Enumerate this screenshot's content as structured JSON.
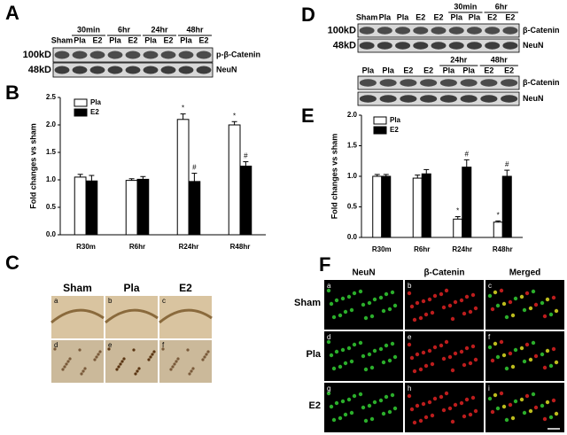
{
  "panel_labels": [
    "A",
    "B",
    "C",
    "D",
    "E",
    "F"
  ],
  "blot_a": {
    "groups": [
      "30min",
      "6hr",
      "24hr",
      "48hr"
    ],
    "lanes": [
      "Sham",
      "Pla",
      "E2",
      "Pla",
      "E2",
      "Pla",
      "E2",
      "Pla",
      "E2"
    ],
    "bands": [
      {
        "size": "100kD",
        "label": "p-β-Catenin"
      },
      {
        "size": "48kD",
        "label": "NeuN"
      }
    ]
  },
  "blot_d": {
    "top": {
      "groups": [
        "30min",
        "6hr"
      ],
      "lanes": [
        "Sham",
        "Pla",
        "Pla",
        "E2",
        "E2",
        "Pla",
        "Pla",
        "E2",
        "E2"
      ],
      "bands": [
        {
          "size": "100kD",
          "label": "β-Catenin"
        },
        {
          "size": "48kD",
          "label": "NeuN"
        }
      ]
    },
    "bottom": {
      "groups": [
        "24hr",
        "48hr"
      ],
      "lanes": [
        "Pla",
        "Pla",
        "E2",
        "E2",
        "Pla",
        "Pla",
        "E2",
        "E2"
      ],
      "bands": [
        {
          "label": "β-Catenin"
        },
        {
          "label": "NeuN"
        }
      ]
    }
  },
  "chart_data": [
    {
      "type": "bar",
      "y_label": "Fold changes vs sham",
      "categories": [
        "R30m",
        "R6hr",
        "R24hr",
        "R48hr"
      ],
      "ylim": [
        0,
        2.5
      ],
      "yticks": [
        {
          "value": 0,
          "label": "0.0"
        },
        0.5,
        {
          "value": 1,
          "label": "1.0"
        },
        1.5,
        {
          "value": 2,
          "label": "2.0"
        },
        2.5
      ],
      "series": [
        {
          "name": "Pla",
          "color": "#ffffff",
          "values": [
            1.05,
            0.99,
            2.1,
            2.0
          ],
          "errors": [
            0.05,
            0.03,
            0.1,
            0.06
          ],
          "markers": [
            null,
            null,
            "*",
            "*"
          ]
        },
        {
          "name": "E2",
          "color": "#000000",
          "values": [
            0.98,
            1.01,
            0.97,
            1.25
          ],
          "errors": [
            0.1,
            0.05,
            0.15,
            0.08
          ],
          "markers": [
            null,
            null,
            "#",
            "#"
          ]
        }
      ]
    },
    {
      "type": "bar",
      "y_label": "Fold changes vs sham",
      "categories": [
        "R30m",
        "R6hr",
        "R24hr",
        "R48hr"
      ],
      "ylim": [
        0,
        2.0
      ],
      "yticks": [
        {
          "value": 0,
          "label": "0.0"
        },
        0.5,
        {
          "value": 1,
          "label": "1.0"
        },
        1.5,
        {
          "value": 2,
          "label": "2.0"
        }
      ],
      "series": [
        {
          "name": "Pla",
          "color": "#ffffff",
          "values": [
            1.0,
            0.97,
            0.3,
            0.25
          ],
          "errors": [
            0.03,
            0.05,
            0.04,
            0.02
          ],
          "markers": [
            null,
            null,
            "*",
            "*"
          ]
        },
        {
          "name": "E2",
          "color": "#000000",
          "values": [
            1.0,
            1.04,
            1.15,
            1.0
          ],
          "errors": [
            0.03,
            0.07,
            0.12,
            0.1
          ],
          "markers": [
            null,
            null,
            "#",
            "#"
          ]
        }
      ]
    }
  ],
  "histology": {
    "columns": [
      "Sham",
      "Pla",
      "E2"
    ],
    "subpanels": [
      "a",
      "b",
      "c",
      "d",
      "e",
      "f"
    ]
  },
  "fluorescence": {
    "columns": [
      "NeuN",
      "β-Catenin",
      "Merged"
    ],
    "rows": [
      "Sham",
      "Pla",
      "E2"
    ],
    "subpanels": [
      "a",
      "b",
      "c",
      "d",
      "e",
      "f",
      "g",
      "h",
      "i"
    ]
  }
}
